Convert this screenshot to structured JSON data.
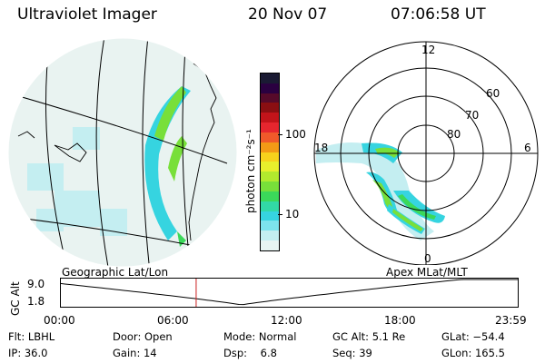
{
  "header": {
    "title": "Ultraviolet Imager",
    "date": "20 Nov 07",
    "time": "07:06:58 UT"
  },
  "colorbar": {
    "label": "photon cm⁻²s⁻¹",
    "ticks": [
      "100",
      "10"
    ],
    "colors": [
      "#1a1a33",
      "#2a0040",
      "#560a2a",
      "#8a0f12",
      "#c2141a",
      "#e6262e",
      "#f0592a",
      "#f39a16",
      "#f7d21c",
      "#e8ef2c",
      "#b2ea2e",
      "#78df3a",
      "#3bd95a",
      "#32d9a6",
      "#36d4e0",
      "#7de3ed",
      "#c4eef1",
      "#e8f4f2"
    ]
  },
  "maps": {
    "left_label": "Geographic Lat/Lon",
    "right_label": "Apex  MLat/MLT",
    "polar_lat_labels": [
      "60",
      "70",
      "80"
    ],
    "polar_mlt_labels": [
      "12",
      "18",
      "6",
      "0"
    ]
  },
  "timeline": {
    "ylabel": "GC Alt",
    "yticks": [
      "9.0",
      "1.8"
    ],
    "xticks": [
      "00:00",
      "06:00",
      "12:00",
      "18:00",
      "23:59"
    ],
    "current_time_hours": 7.116,
    "marker_color": "#cc2222"
  },
  "info": {
    "flt_label": "Flt:",
    "flt_value": "LBHL",
    "ip_label": "IP:",
    "ip_value": "36.0",
    "door_label": "Door:",
    "door_value": "Open",
    "gain_label": "Gain:",
    "gain_value": "14",
    "mode_label": "Mode:",
    "mode_value": "Normal",
    "dsp_label": "Dsp:",
    "dsp_value": "6.8",
    "gcalt_label": "GC Alt:",
    "gcalt_value": "5.1 Re",
    "seq_label": "Seq:",
    "seq_value": "39",
    "glat_label": "GLat:",
    "glat_value": "−54.4",
    "glon_label": "GLon:",
    "glon_value": "165.5"
  }
}
